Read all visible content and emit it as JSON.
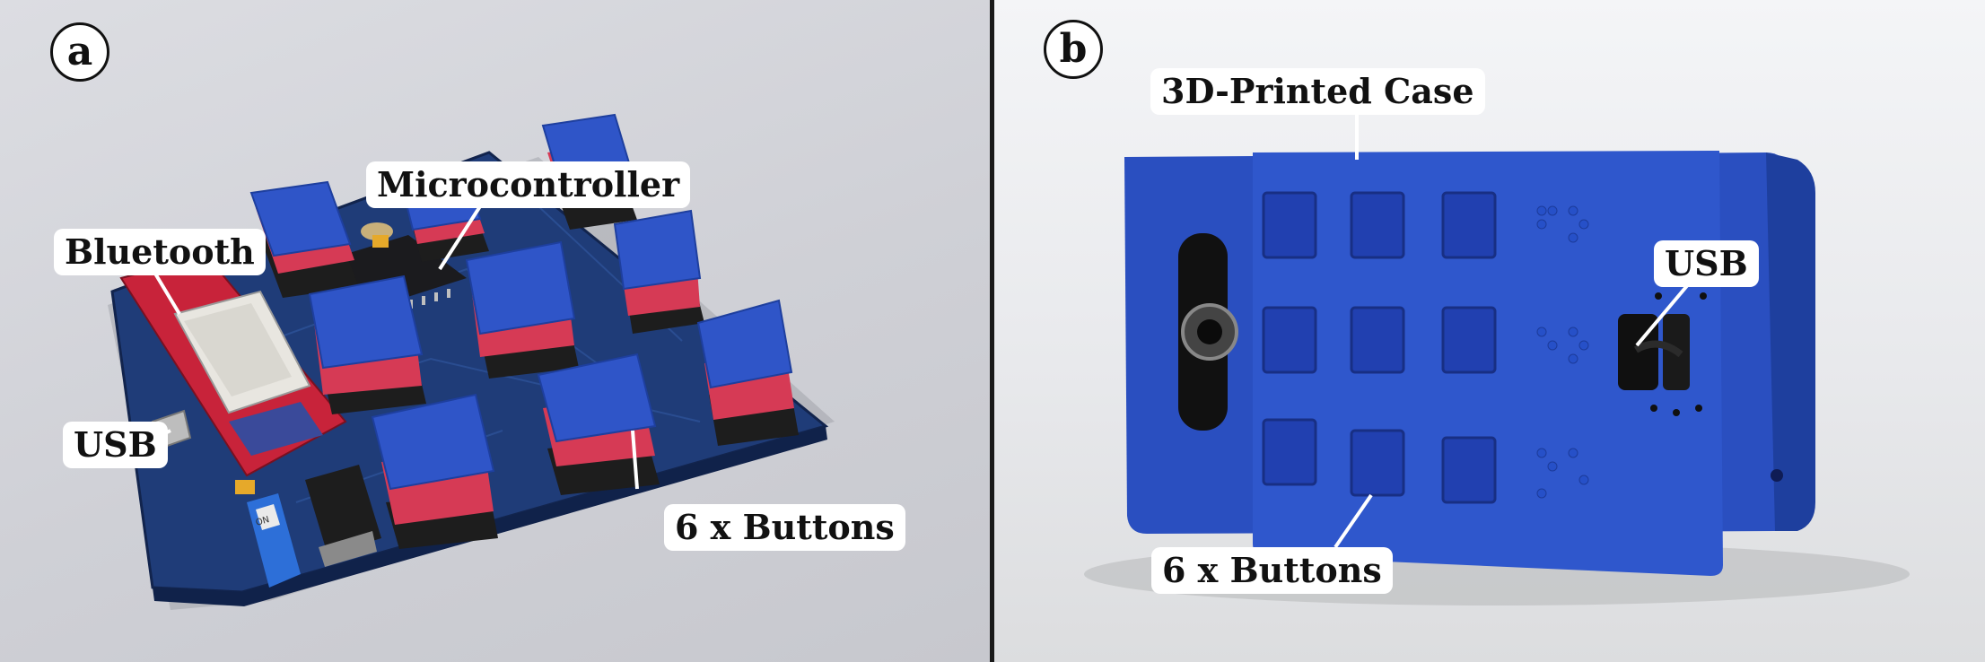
{
  "panels": [
    {
      "letter": "a",
      "callouts": [
        "Bluetooth",
        "Microcontroller",
        "USB",
        "6 x Buttons"
      ]
    },
    {
      "letter": "b",
      "callouts": [
        "3D-Printed Case",
        "USB",
        "6 x Buttons"
      ]
    }
  ],
  "colors": {
    "button_cap": "#2f55c8",
    "button_base": "#d63a55",
    "pcb": "#1f3c78",
    "case": "#2a4fc0",
    "divider": "#1a1a1a"
  },
  "switch_label": "ON"
}
